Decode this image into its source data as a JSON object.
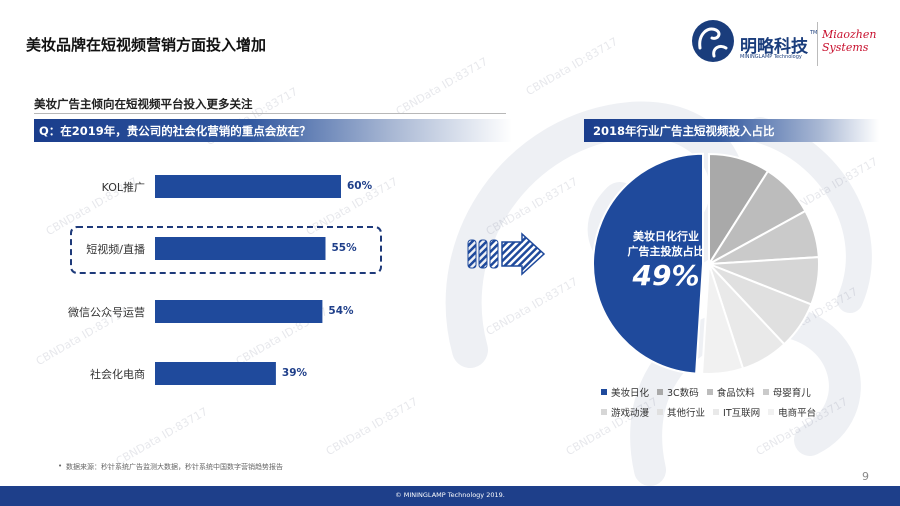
{
  "header": {
    "title": "美妆品牌在短视频营销方面投入增加",
    "logo_cn": "明略科技",
    "logo_en": "MININGLAMP Technology",
    "logo_tm": "TM",
    "logo_mz_line1": "Miaozhen",
    "logo_mz_line2": "Systems"
  },
  "subtitle": "美妆广告主倾向在短视频平台投入更多关注",
  "question": "Q：在2019年，贵公司的社会化营销的重点会放在？",
  "pie_title": "2018年行业广告主短视频投入占比",
  "pie_center": {
    "line1": "美妆日化行业",
    "line2": "广告主投放占比",
    "pct": "49%"
  },
  "colors": {
    "primary": "#1f4a9c",
    "grey_slices": [
      "#a9a9a9",
      "#bcbcbc",
      "#cacaca",
      "#d6d6d6",
      "#e0e0e0",
      "#e9e9e9",
      "#f1f1f1"
    ]
  },
  "chart_data": [
    {
      "type": "bar",
      "orientation": "horizontal",
      "categories": [
        "KOL推广",
        "短视频/直播",
        "微信公众号运营",
        "社会化电商"
      ],
      "values": [
        60,
        55,
        54,
        39
      ],
      "value_labels": [
        "60%",
        "55%",
        "54%",
        "39%"
      ],
      "highlighted_category": "短视频/直播",
      "xlim": [
        0,
        100
      ]
    },
    {
      "type": "pie",
      "title": "2018年行业广告主短视频投入占比",
      "labels": [
        "美妆日化",
        "3C数码",
        "食品饮料",
        "母婴育儿",
        "游戏动漫",
        "其他行业",
        "IT互联网",
        "电商平台"
      ],
      "values": [
        49,
        9,
        8,
        7,
        7,
        7,
        7,
        6
      ],
      "labeled_value": "49%"
    }
  ],
  "legend": {
    "row1": [
      "美妆日化",
      "3C数码",
      "食品饮料",
      "母婴育儿"
    ],
    "row2": [
      "游戏动漫",
      "其他行业",
      "IT互联网",
      "电商平台"
    ]
  },
  "watermark": "CBNData ID:83717",
  "source": "数据来源：秒针系统广告监测大数据，秒针系统中国数字营销趋势报告",
  "source_bullet": "•",
  "page_number": "9",
  "footer": "© MININGLAMP Technology 2019."
}
